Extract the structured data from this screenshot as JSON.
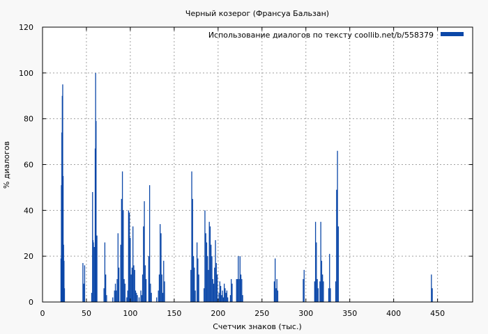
{
  "chart_data": {
    "type": "bar",
    "title": "Черный козерог (Франсуа Бальзан)",
    "xlabel": "Счетчик знаков (тыс.)",
    "ylabel": "% диалогов",
    "xlim": [
      0,
      490
    ],
    "ylim": [
      0,
      120
    ],
    "xticks": [
      0,
      50,
      100,
      150,
      200,
      250,
      300,
      350,
      400,
      450
    ],
    "yticks": [
      0,
      20,
      40,
      60,
      80,
      100,
      120
    ],
    "grid": true,
    "legend_position": "top-right",
    "series": [
      {
        "name": "Использование диалогов по тексту  coollib.net/b/558379",
        "color": "#0b47a8",
        "points": [
          [
            21,
            19
          ],
          [
            21.5,
            51
          ],
          [
            22,
            74
          ],
          [
            22.5,
            90
          ],
          [
            23,
            95
          ],
          [
            23.5,
            55
          ],
          [
            24,
            25
          ],
          [
            24.5,
            18
          ],
          [
            25,
            6
          ],
          [
            46,
            17
          ],
          [
            47,
            8
          ],
          [
            48,
            16
          ],
          [
            56,
            4
          ],
          [
            57,
            48
          ],
          [
            57.5,
            27
          ],
          [
            58,
            26
          ],
          [
            59,
            24
          ],
          [
            60,
            67
          ],
          [
            60.5,
            100
          ],
          [
            61,
            79
          ],
          [
            62,
            29
          ],
          [
            70,
            6
          ],
          [
            71,
            26
          ],
          [
            72,
            12
          ],
          [
            73,
            3
          ],
          [
            80,
            2
          ],
          [
            82,
            5
          ],
          [
            83,
            8
          ],
          [
            84,
            5
          ],
          [
            85,
            10
          ],
          [
            86,
            30
          ],
          [
            87,
            15
          ],
          [
            89,
            25
          ],
          [
            90,
            45
          ],
          [
            91,
            57
          ],
          [
            92,
            40
          ],
          [
            93,
            10
          ],
          [
            94,
            8
          ],
          [
            96,
            2
          ],
          [
            97,
            5
          ],
          [
            98,
            40
          ],
          [
            99,
            39
          ],
          [
            100,
            28
          ],
          [
            101,
            12
          ],
          [
            102,
            15
          ],
          [
            103,
            33
          ],
          [
            104,
            16
          ],
          [
            105,
            14
          ],
          [
            106,
            5
          ],
          [
            107,
            4
          ],
          [
            108,
            3
          ],
          [
            110,
            2
          ],
          [
            112,
            5
          ],
          [
            113,
            3
          ],
          [
            114,
            12
          ],
          [
            115,
            33
          ],
          [
            116,
            44
          ],
          [
            117,
            16
          ],
          [
            118,
            10
          ],
          [
            121,
            20
          ],
          [
            122,
            51
          ],
          [
            123,
            8
          ],
          [
            124,
            4
          ],
          [
            130,
            2
          ],
          [
            132,
            5
          ],
          [
            133,
            12
          ],
          [
            134,
            34
          ],
          [
            135,
            30
          ],
          [
            136,
            12
          ],
          [
            137,
            4
          ],
          [
            138,
            18
          ],
          [
            139,
            9
          ],
          [
            169,
            14
          ],
          [
            170,
            57
          ],
          [
            171,
            45
          ],
          [
            172,
            20
          ],
          [
            173,
            15
          ],
          [
            174,
            5
          ],
          [
            176,
            26
          ],
          [
            177,
            19
          ],
          [
            178,
            12
          ],
          [
            184,
            6
          ],
          [
            185,
            40
          ],
          [
            186,
            30
          ],
          [
            187,
            26
          ],
          [
            188,
            20
          ],
          [
            189,
            14
          ],
          [
            190,
            35
          ],
          [
            191,
            33
          ],
          [
            192,
            25
          ],
          [
            193,
            20
          ],
          [
            194,
            10
          ],
          [
            195,
            8
          ],
          [
            196,
            15
          ],
          [
            197,
            27
          ],
          [
            198,
            17
          ],
          [
            199,
            12
          ],
          [
            201,
            4
          ],
          [
            202,
            9
          ],
          [
            203,
            7
          ],
          [
            204,
            3
          ],
          [
            205,
            5
          ],
          [
            206,
            2
          ],
          [
            207,
            8
          ],
          [
            208,
            6
          ],
          [
            209,
            4
          ],
          [
            210,
            5
          ],
          [
            211,
            2
          ],
          [
            214,
            3
          ],
          [
            215,
            10
          ],
          [
            216,
            8
          ],
          [
            221,
            10
          ],
          [
            222,
            10
          ],
          [
            223,
            20
          ],
          [
            224,
            10
          ],
          [
            225,
            20
          ],
          [
            226,
            12
          ],
          [
            227,
            10
          ],
          [
            228,
            3
          ],
          [
            264,
            9
          ],
          [
            265,
            19
          ],
          [
            266,
            6
          ],
          [
            267,
            10
          ],
          [
            268,
            5
          ],
          [
            297,
            10
          ],
          [
            298,
            14
          ],
          [
            310,
            9
          ],
          [
            311,
            35
          ],
          [
            312,
            26
          ],
          [
            313,
            10
          ],
          [
            314,
            6
          ],
          [
            316,
            9
          ],
          [
            317,
            35
          ],
          [
            318,
            18
          ],
          [
            319,
            12
          ],
          [
            320,
            9
          ],
          [
            326,
            6
          ],
          [
            327,
            21
          ],
          [
            328,
            6
          ],
          [
            334,
            9
          ],
          [
            335,
            49
          ],
          [
            336,
            66
          ],
          [
            337,
            33
          ],
          [
            443,
            12
          ],
          [
            444,
            6
          ]
        ]
      }
    ]
  }
}
